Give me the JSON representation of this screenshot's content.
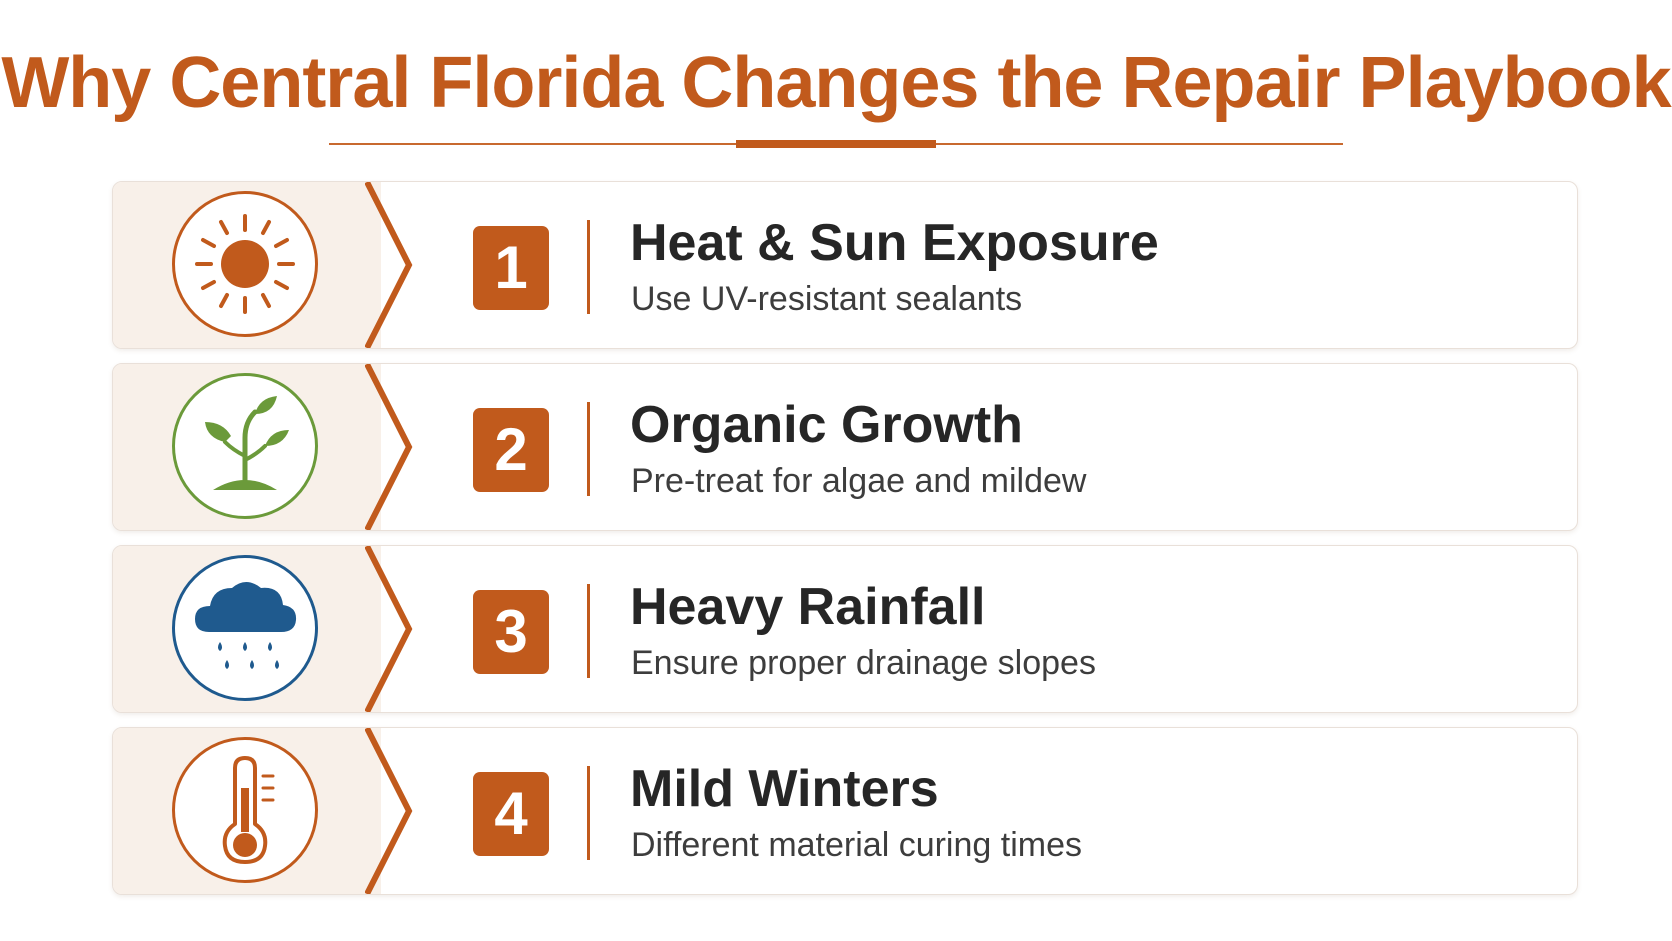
{
  "title": "Why Central Florida Changes the Repair Playbook",
  "colors": {
    "accent": "#c15a1c",
    "panel": "#f8f0e9",
    "heading": "#262626",
    "body": "#3d3d3d",
    "plant_green": "#6b9a3a",
    "rain_blue": "#1f5a8e"
  },
  "items": [
    {
      "number": "1",
      "heading": "Heat & Sun Exposure",
      "subtext": "Use UV-resistant sealants",
      "icon": "sun-icon"
    },
    {
      "number": "2",
      "heading": "Organic Growth",
      "subtext": "Pre-treat for algae and mildew",
      "icon": "plant-icon"
    },
    {
      "number": "3",
      "heading": "Heavy Rainfall",
      "subtext": "Ensure proper drainage slopes",
      "icon": "rain-cloud-icon"
    },
    {
      "number": "4",
      "heading": "Mild Winters",
      "subtext": "Different material curing times",
      "icon": "thermometer-icon"
    }
  ]
}
